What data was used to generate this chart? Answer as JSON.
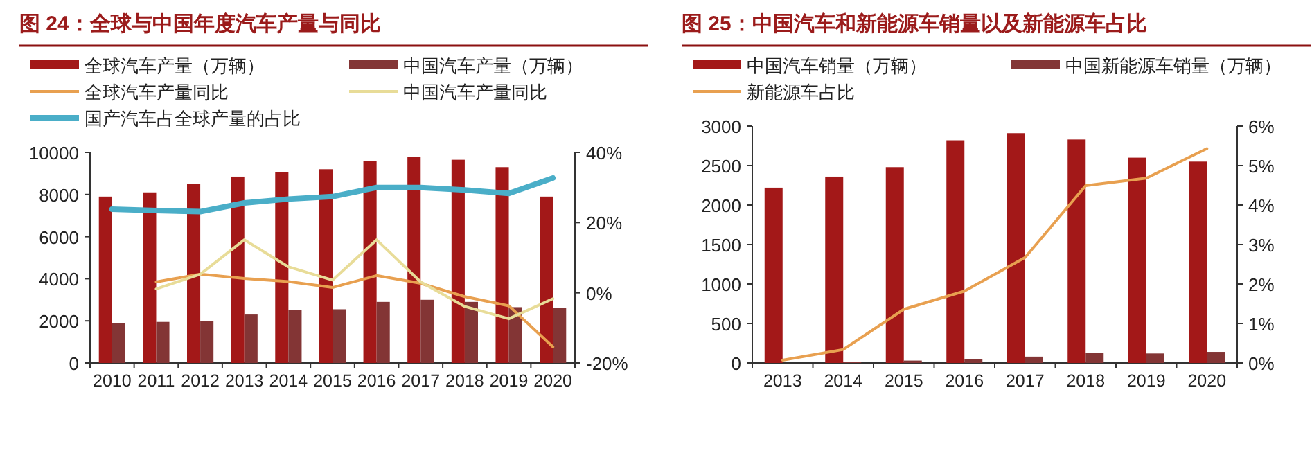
{
  "chart_data": [
    {
      "type": "bar",
      "title": "图 24：全球与中国年度汽车产量与同比",
      "categories": [
        "2010",
        "2011",
        "2012",
        "2013",
        "2014",
        "2015",
        "2016",
        "2017",
        "2018",
        "2019",
        "2020"
      ],
      "series": [
        {
          "name": "全球汽车产量（万辆）",
          "color": "#a31818",
          "values": [
            7900,
            8100,
            8500,
            8850,
            9050,
            9200,
            9600,
            9800,
            9650,
            9300,
            7900
          ]
        },
        {
          "name": "中国汽车产量（万辆）",
          "color": "#833535",
          "values": [
            1900,
            1950,
            2000,
            2300,
            2500,
            2550,
            2900,
            3000,
            2900,
            2650,
            2600
          ]
        },
        {
          "name": "全球汽车产量同比",
          "type": "line",
          "axis": "y2",
          "color": "#e8a050",
          "values": [
            null,
            3.1,
            5.3,
            4.1,
            3.2,
            1.5,
            4.9,
            2.7,
            -1.1,
            -3.7,
            -15.4
          ]
        },
        {
          "name": "中国汽车产量同比",
          "type": "line",
          "axis": "y2",
          "color": "#e8dc98",
          "values": [
            null,
            1.1,
            5.3,
            15.1,
            7.4,
            3.6,
            15.1,
            3.1,
            -3.9,
            -7.4,
            -1.7
          ]
        },
        {
          "name": "国产汽车占全球产量的占比",
          "type": "line",
          "axis": "y2",
          "color": "#4aaec8",
          "values": [
            23.8,
            23.4,
            23.1,
            25.6,
            26.7,
            27.4,
            30.0,
            30.0,
            29.3,
            28.3,
            32.7
          ]
        }
      ],
      "ylim": [
        0,
        10000
      ],
      "yticks": [
        0,
        2000,
        4000,
        6000,
        8000,
        10000
      ],
      "y2lim": [
        -20,
        40
      ],
      "y2ticks": [
        {
          "value": -20,
          "label": "-20%"
        },
        {
          "value": 0,
          "label": "0%"
        },
        {
          "value": 20,
          "label": "20%"
        },
        {
          "value": 40,
          "label": "40%"
        }
      ],
      "legend": "top",
      "grid": false,
      "marker": "none"
    },
    {
      "type": "bar",
      "title": "图 25：中国汽车和新能源车销量以及新能源车占比",
      "categories": [
        "2013",
        "2014",
        "2015",
        "2016",
        "2017",
        "2018",
        "2019",
        "2020"
      ],
      "series": [
        {
          "name": "中国汽车销量（万辆）",
          "color": "#a31818",
          "values": [
            2220,
            2360,
            2480,
            2820,
            2910,
            2830,
            2600,
            2550
          ]
        },
        {
          "name": "中国新能源车销量（万辆）",
          "color": "#833535",
          "values": [
            0,
            10,
            30,
            50,
            80,
            130,
            120,
            140
          ]
        },
        {
          "name": "新能源车占比",
          "type": "line",
          "axis": "y2",
          "color": "#e8a050",
          "values": [
            0.07,
            0.34,
            1.36,
            1.82,
            2.67,
            4.49,
            4.68,
            5.43
          ]
        }
      ],
      "ylim": [
        0,
        3000
      ],
      "yticks": [
        0,
        500,
        1000,
        1500,
        2000,
        2500,
        3000
      ],
      "y2lim": [
        0,
        6
      ],
      "y2ticks": [
        {
          "value": 0,
          "label": "0%"
        },
        {
          "value": 1,
          "label": "1%"
        },
        {
          "value": 2,
          "label": "2%"
        },
        {
          "value": 3,
          "label": "3%"
        },
        {
          "value": 4,
          "label": "4%"
        },
        {
          "value": 5,
          "label": "5%"
        },
        {
          "value": 6,
          "label": "6%"
        }
      ],
      "legend": "top",
      "grid": false,
      "marker": "none"
    }
  ]
}
